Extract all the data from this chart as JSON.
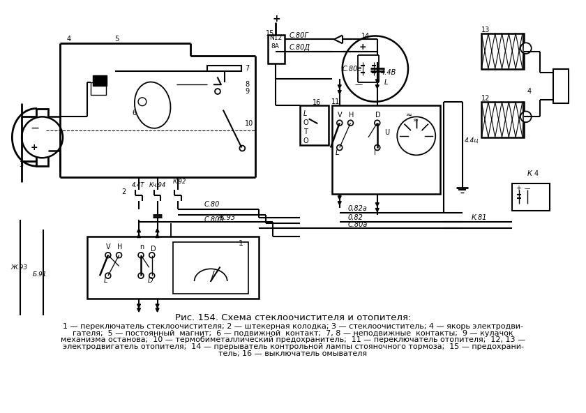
{
  "title": "Рис. 154. Схема стеклоочистителя и отопителя:",
  "cap1": "1 — переключатель стеклоочистителя; 2 — штекерная колодка; 3 — стеклоочиститель; 4 — якорь электродви-",
  "cap2": "гателя;  5 — постоянный  магнит;  6 — подвижной  контакт;  7, 8 — неподвижные  контакты;  9 — кулачок",
  "cap3": "механизма останова;  10 — термобиметаллический предохранитель;  11 — переключатель отопителя;  12, 13 —",
  "cap4": "электродвигатель отопителя;  14 — прерыватель контрольной лампы стояночного тормоза;  15 — предохрани-",
  "cap5": "тель; 16 — выключатель омывателя",
  "bg_color": "#ffffff",
  "lc": "#000000"
}
